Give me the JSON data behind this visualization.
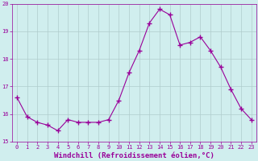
{
  "x": [
    0,
    1,
    2,
    3,
    4,
    5,
    6,
    7,
    8,
    9,
    10,
    11,
    12,
    13,
    14,
    15,
    16,
    17,
    18,
    19,
    20,
    21,
    22,
    23
  ],
  "y": [
    16.6,
    15.9,
    15.7,
    15.6,
    15.4,
    15.8,
    15.7,
    15.7,
    15.7,
    15.8,
    16.5,
    17.5,
    18.3,
    19.3,
    19.8,
    19.6,
    18.5,
    18.6,
    18.8,
    18.3,
    17.7,
    16.9,
    16.2,
    15.8
  ],
  "line_color": "#990099",
  "marker": "+",
  "marker_size": 4,
  "bg_color": "#d0eeee",
  "grid_color": "#b0cccc",
  "xlabel": "Windchill (Refroidissement éolien,°C)",
  "ylim": [
    15,
    20
  ],
  "xlim_min": -0.5,
  "xlim_max": 23.5,
  "yticks": [
    15,
    16,
    17,
    18,
    19,
    20
  ],
  "xticks": [
    0,
    1,
    2,
    3,
    4,
    5,
    6,
    7,
    8,
    9,
    10,
    11,
    12,
    13,
    14,
    15,
    16,
    17,
    18,
    19,
    20,
    21,
    22,
    23
  ],
  "tick_color": "#990099",
  "tick_fontsize": 5,
  "xlabel_fontsize": 6.5,
  "xlabel_color": "#990099"
}
